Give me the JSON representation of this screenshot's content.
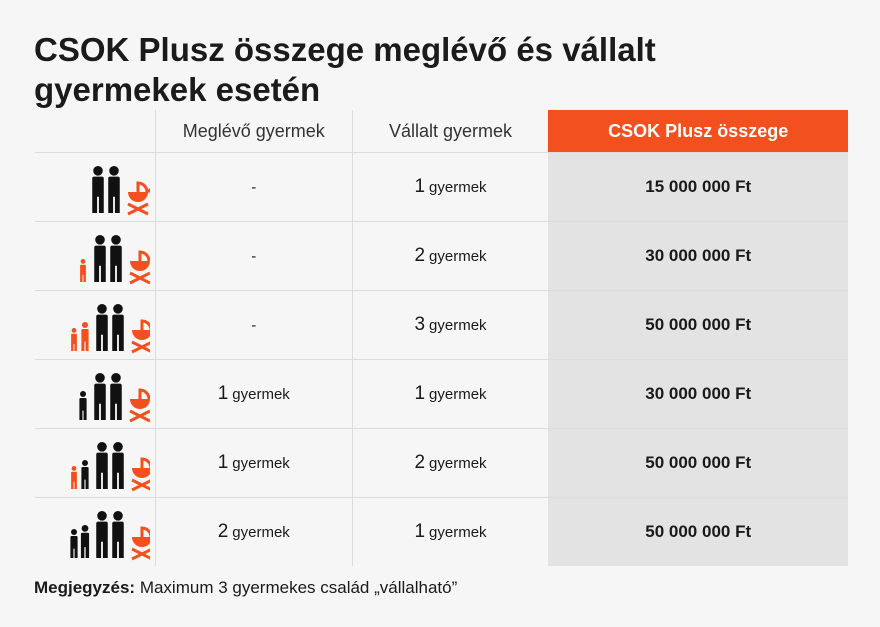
{
  "title": "CSOK Plusz összege meglévő és vállalt gyermekek esetén",
  "headers": [
    "",
    "Meglévő gyermek",
    "Vállalt gyermek",
    "CSOK Plusz összege"
  ],
  "colors": {
    "accent": "#f2501e",
    "parent": "#111111",
    "child_existing": "#f2501e",
    "highlight_column_bg": "#e3e3e3"
  },
  "rows": [
    {
      "existing": "-",
      "existing_count": "",
      "existing_unit": "",
      "committed_count": "1",
      "committed_unit": "gyermek",
      "amount": "15 000 000 Ft",
      "icon": "family-icon-pram",
      "existing_children": 0,
      "committed_children": 1
    },
    {
      "existing": "-",
      "existing_count": "",
      "existing_unit": "",
      "committed_count": "2",
      "committed_unit": "gyermek",
      "amount": "30 000 000 Ft",
      "icon": "family-icon-pram",
      "existing_children": 0,
      "committed_children": 2
    },
    {
      "existing": "-",
      "existing_count": "",
      "existing_unit": "",
      "committed_count": "3",
      "committed_unit": "gyermek",
      "amount": "50 000 000 Ft",
      "icon": "family-icon-pram",
      "existing_children": 0,
      "committed_children": 3
    },
    {
      "existing": "",
      "existing_count": "1",
      "existing_unit": "gyermek",
      "committed_count": "1",
      "committed_unit": "gyermek",
      "amount": "30 000 000 Ft",
      "icon": "family-icon-pram",
      "existing_children": 1,
      "committed_children": 1
    },
    {
      "existing": "",
      "existing_count": "1",
      "existing_unit": "gyermek",
      "committed_count": "2",
      "committed_unit": "gyermek",
      "amount": "50 000 000 Ft",
      "icon": "family-icon-pram",
      "existing_children": 1,
      "committed_children": 2
    },
    {
      "existing": "",
      "existing_count": "2",
      "existing_unit": "gyermek",
      "committed_count": "1",
      "committed_unit": "gyermek",
      "amount": "50 000 000 Ft",
      "icon": "family-icon-pram",
      "existing_children": 2,
      "committed_children": 1
    }
  ],
  "note": {
    "label": "Megjegyzés:",
    "text": " Maximum 3 gyermekes család „vállalható”"
  }
}
